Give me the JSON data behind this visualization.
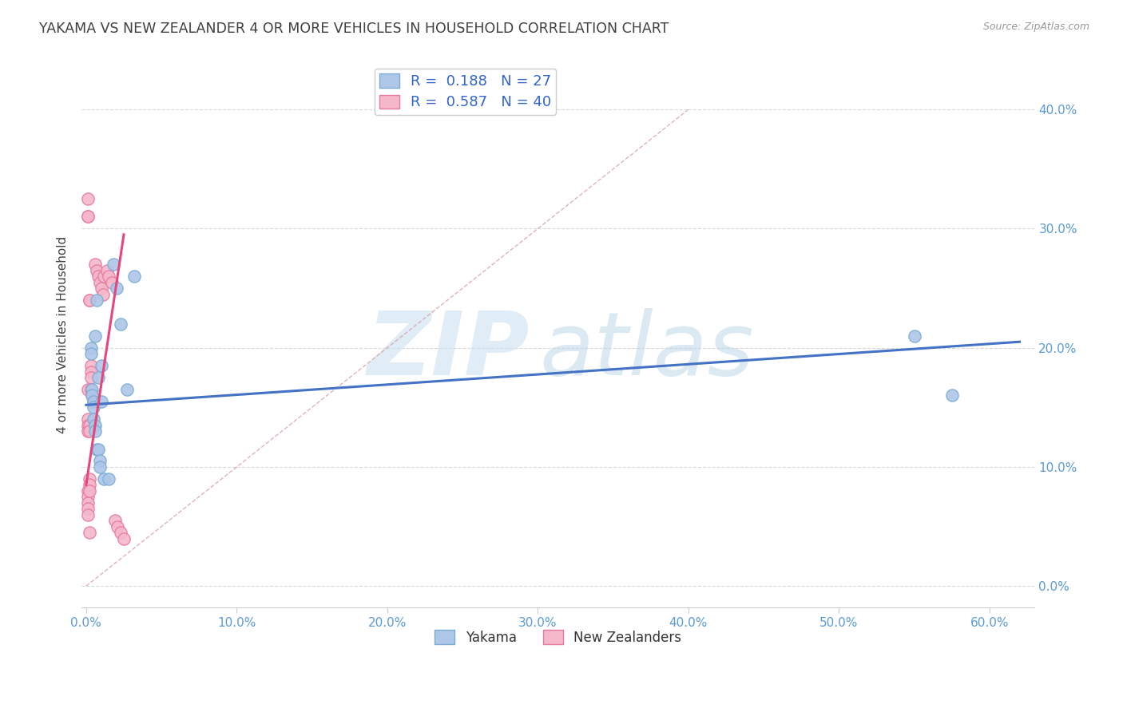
{
  "title": "YAKAMA VS NEW ZEALANDER 4 OR MORE VEHICLES IN HOUSEHOLD CORRELATION CHART",
  "source": "Source: ZipAtlas.com",
  "xlim": [
    -0.003,
    0.63
  ],
  "ylim": [
    -0.018,
    0.44
  ],
  "watermark_zip": "ZIP",
  "watermark_atlas": "atlas",
  "yakama_scatter_color": "#aec6e8",
  "yakama_edge_color": "#7badd4",
  "nz_scatter_color": "#f5b8cb",
  "nz_edge_color": "#e87aa0",
  "yakama_line_color": "#4472c4",
  "nz_line_color": "#e8457a",
  "ref_line_color": "#d8a0a8",
  "grid_color": "#d8d8d8",
  "title_color": "#404040",
  "axis_color": "#5b9bd5",
  "scatter_yakama_x": [
    0.003,
    0.003,
    0.004,
    0.004,
    0.005,
    0.005,
    0.005,
    0.006,
    0.006,
    0.006,
    0.007,
    0.007,
    0.008,
    0.008,
    0.009,
    0.009,
    0.01,
    0.01,
    0.012,
    0.015,
    0.018,
    0.02,
    0.023,
    0.027,
    0.032,
    0.55,
    0.575
  ],
  "scatter_yakama_y": [
    0.2,
    0.195,
    0.165,
    0.16,
    0.155,
    0.15,
    0.14,
    0.135,
    0.13,
    0.21,
    0.24,
    0.115,
    0.175,
    0.115,
    0.105,
    0.1,
    0.185,
    0.155,
    0.09,
    0.09,
    0.27,
    0.25,
    0.22,
    0.165,
    0.26,
    0.21,
    0.16
  ],
  "scatter_nz_x": [
    0.001,
    0.001,
    0.001,
    0.001,
    0.001,
    0.001,
    0.001,
    0.001,
    0.001,
    0.001,
    0.001,
    0.001,
    0.002,
    0.002,
    0.002,
    0.002,
    0.002,
    0.002,
    0.002,
    0.002,
    0.003,
    0.003,
    0.003,
    0.003,
    0.004,
    0.005,
    0.006,
    0.007,
    0.008,
    0.009,
    0.01,
    0.011,
    0.012,
    0.014,
    0.015,
    0.017,
    0.019,
    0.021,
    0.023,
    0.025
  ],
  "scatter_nz_y": [
    0.325,
    0.31,
    0.31,
    0.165,
    0.14,
    0.135,
    0.13,
    0.08,
    0.075,
    0.07,
    0.065,
    0.06,
    0.24,
    0.24,
    0.135,
    0.13,
    0.09,
    0.085,
    0.08,
    0.045,
    0.185,
    0.18,
    0.175,
    0.165,
    0.16,
    0.155,
    0.27,
    0.265,
    0.26,
    0.255,
    0.25,
    0.245,
    0.26,
    0.265,
    0.26,
    0.255,
    0.055,
    0.05,
    0.045,
    0.04
  ],
  "yakama_trend_x": [
    0.0,
    0.62
  ],
  "yakama_trend_y": [
    0.152,
    0.205
  ],
  "nz_trend_x": [
    0.0,
    0.025
  ],
  "nz_trend_y": [
    0.085,
    0.295
  ],
  "ref_line_x": [
    0.0,
    0.4
  ],
  "ref_line_y": [
    0.0,
    0.4
  ],
  "x_ticks": [
    0.0,
    0.1,
    0.2,
    0.3,
    0.4,
    0.5,
    0.6
  ],
  "x_tick_labels": [
    "0.0%",
    "10.0%",
    "20.0%",
    "30.0%",
    "40.0%",
    "50.0%",
    "60.0%"
  ],
  "y_ticks": [
    0.0,
    0.1,
    0.2,
    0.3,
    0.4
  ],
  "y_tick_labels": [
    "0.0%",
    "10.0%",
    "20.0%",
    "30.0%",
    "40.0%"
  ]
}
